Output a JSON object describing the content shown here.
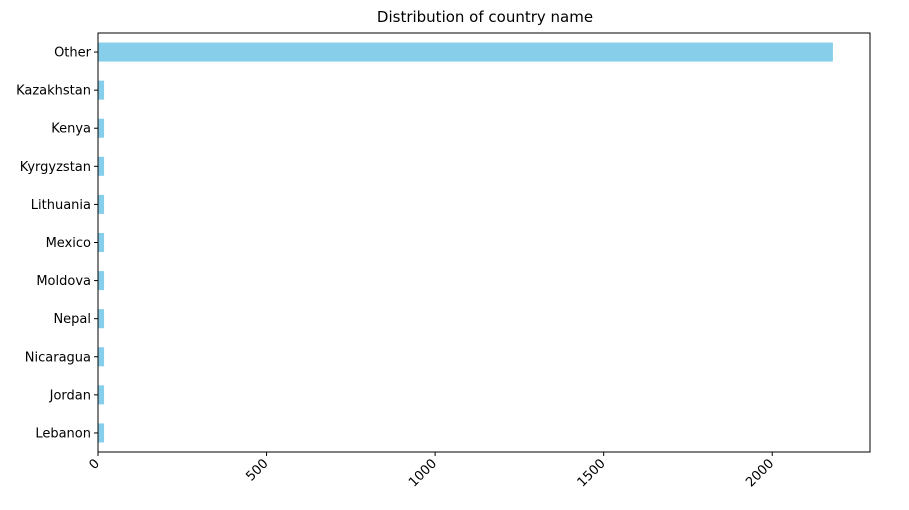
{
  "chart_data": {
    "type": "bar",
    "orientation": "horizontal",
    "title": "Distribution of country name",
    "xlabel": "",
    "ylabel": "",
    "categories": [
      "Other",
      "Kazakhstan",
      "Kenya",
      "Kyrgyzstan",
      "Lithuania",
      "Mexico",
      "Moldova",
      "Nepal",
      "Nicaragua",
      "Jordan",
      "Lebanon"
    ],
    "values": [
      2180,
      18,
      18,
      18,
      18,
      18,
      18,
      18,
      18,
      18,
      18
    ],
    "xlim": [
      0,
      2290
    ],
    "xticks": [
      0,
      500,
      1000,
      1500,
      2000
    ],
    "xtick_labels": [
      "0",
      "500",
      "1000",
      "1500",
      "2000"
    ],
    "bar_color": "#87ceeb",
    "grid": false,
    "legend": "none"
  }
}
